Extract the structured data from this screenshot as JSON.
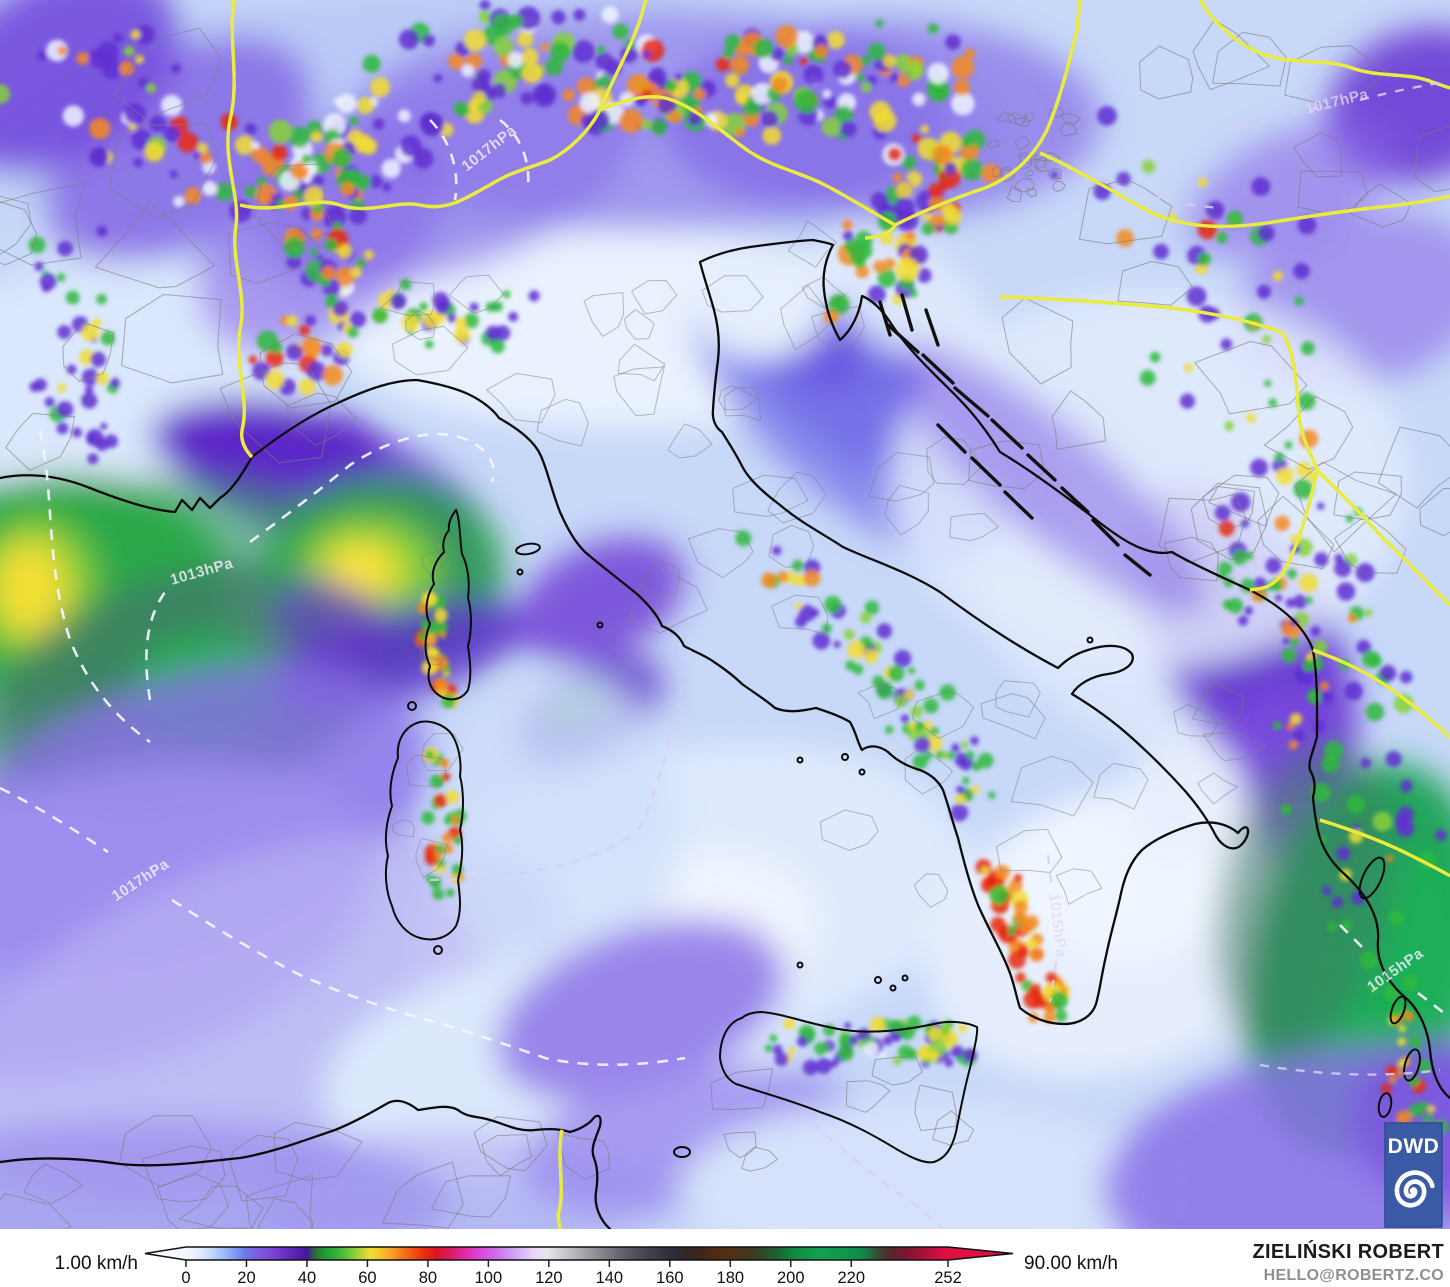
{
  "map": {
    "kind": "wind-speed-forecast-map",
    "isobar_labels": [
      {
        "text": "1017hPa"
      },
      {
        "text": "1013hPa"
      },
      {
        "text": "1017hPa"
      },
      {
        "text": "1015hPa"
      },
      {
        "text": "1015hPa"
      },
      {
        "text": "1017hPa"
      }
    ]
  },
  "legend": {
    "min_label": "1.00 km/h",
    "max_label": "90.00 km/h",
    "unit": "km/h",
    "ticks": [
      0,
      20,
      40,
      60,
      80,
      100,
      120,
      140,
      160,
      180,
      200,
      220,
      252
    ],
    "colormap": [
      {
        "v": 0,
        "c": "#f4f8ff"
      },
      {
        "v": 4,
        "c": "#e2eefd"
      },
      {
        "v": 8,
        "c": "#c6dbfb"
      },
      {
        "v": 12,
        "c": "#a4c0f7"
      },
      {
        "v": 16,
        "c": "#7f9cf2"
      },
      {
        "v": 20,
        "c": "#6f74ea"
      },
      {
        "v": 24,
        "c": "#7a5ce2"
      },
      {
        "v": 28,
        "c": "#7c46d8"
      },
      {
        "v": 32,
        "c": "#6f32c9"
      },
      {
        "v": 36,
        "c": "#5c23b4"
      },
      {
        "v": 40,
        "c": "#44189c"
      },
      {
        "v": 43,
        "c": "#2b7334"
      },
      {
        "v": 46,
        "c": "#1f9c38"
      },
      {
        "v": 50,
        "c": "#36b33a"
      },
      {
        "v": 54,
        "c": "#6cc739"
      },
      {
        "v": 58,
        "c": "#b4d636"
      },
      {
        "v": 61,
        "c": "#eede34"
      },
      {
        "v": 64,
        "c": "#f6c52e"
      },
      {
        "v": 68,
        "c": "#f7a026"
      },
      {
        "v": 71,
        "c": "#f67c1d"
      },
      {
        "v": 75,
        "c": "#f25414"
      },
      {
        "v": 79,
        "c": "#ea2b0e"
      },
      {
        "v": 83,
        "c": "#dc1420"
      },
      {
        "v": 87,
        "c": "#dc1a5e"
      },
      {
        "v": 91,
        "c": "#de2694"
      },
      {
        "v": 95,
        "c": "#dd38c2"
      },
      {
        "v": 99,
        "c": "#d553e4"
      },
      {
        "v": 103,
        "c": "#cc73ee"
      },
      {
        "v": 107,
        "c": "#cf94f3"
      },
      {
        "v": 111,
        "c": "#dab6f7"
      },
      {
        "v": 115,
        "c": "#e8d7f9"
      },
      {
        "v": 119,
        "c": "#e9e5ee"
      },
      {
        "v": 123,
        "c": "#d4d4d8"
      },
      {
        "v": 128,
        "c": "#b9b9bf"
      },
      {
        "v": 133,
        "c": "#9d9da5"
      },
      {
        "v": 138,
        "c": "#82828c"
      },
      {
        "v": 143,
        "c": "#696974"
      },
      {
        "v": 148,
        "c": "#53535f"
      },
      {
        "v": 153,
        "c": "#414150"
      },
      {
        "v": 158,
        "c": "#333342"
      },
      {
        "v": 162,
        "c": "#2d2b38"
      },
      {
        "v": 166,
        "c": "#322722"
      },
      {
        "v": 170,
        "c": "#3d2719"
      },
      {
        "v": 174,
        "c": "#4b2a16"
      },
      {
        "v": 178,
        "c": "#562c14"
      },
      {
        "v": 182,
        "c": "#4e3018"
      },
      {
        "v": 187,
        "c": "#3b3a1f"
      },
      {
        "v": 191,
        "c": "#2b4a28"
      },
      {
        "v": 195,
        "c": "#1d6032"
      },
      {
        "v": 199,
        "c": "#147c3c"
      },
      {
        "v": 204,
        "c": "#0f9448"
      },
      {
        "v": 209,
        "c": "#10a150"
      },
      {
        "v": 214,
        "c": "#0e9c4e"
      },
      {
        "v": 219,
        "c": "#0f954b"
      },
      {
        "v": 224,
        "c": "#11884a"
      },
      {
        "v": 229,
        "c": "#3a4a35"
      },
      {
        "v": 233,
        "c": "#54282f"
      },
      {
        "v": 238,
        "c": "#7c152f"
      },
      {
        "v": 243,
        "c": "#a31136"
      },
      {
        "v": 248,
        "c": "#c90f3e"
      },
      {
        "v": 252,
        "c": "#e01043"
      }
    ]
  },
  "logo": {
    "label": "DWD",
    "bg": "#3b5aa6"
  },
  "attribution": {
    "name": "ZIELIŃSKI ROBERT",
    "contact": "HELLO@ROBERTZ.CO"
  },
  "colors": {
    "country_border": "#e9eb3e",
    "coastline": "#0b0b0b",
    "isobar": "#f6f4ff"
  }
}
